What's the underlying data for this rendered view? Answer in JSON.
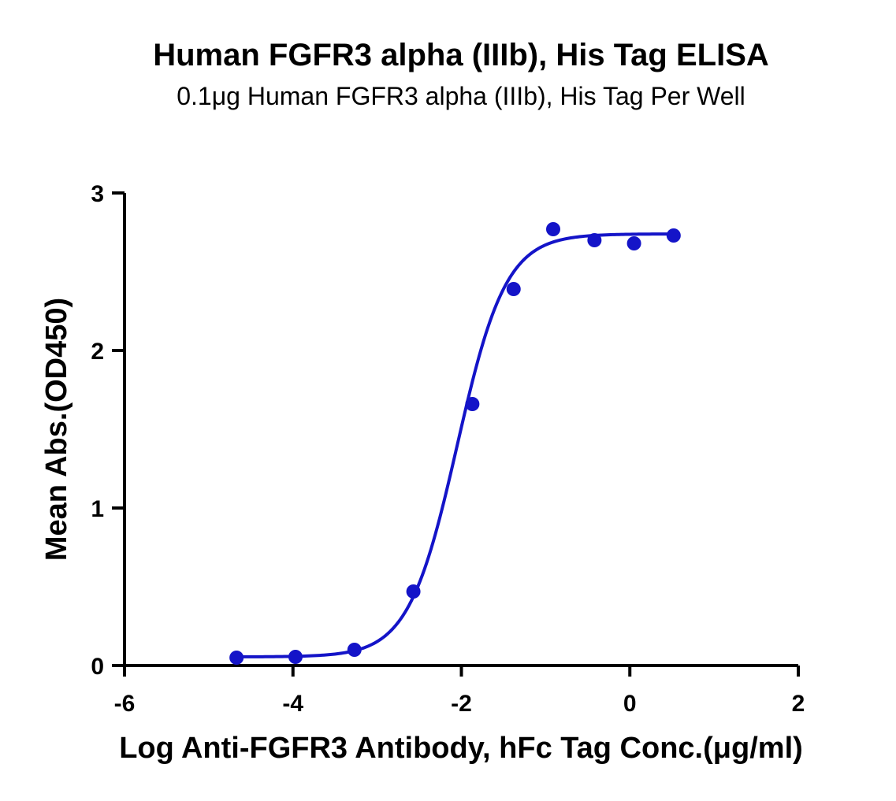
{
  "chart_data": {
    "type": "scatter",
    "title": "Human FGFR3 alpha (IIIb), His Tag ELISA",
    "subtitle": "0.1μg Human FGFR3 alpha (IIIb), His Tag Per Well",
    "xlabel": "Log Anti-FGFR3 Antibody, hFc Tag Conc.(μg/ml)",
    "ylabel": "Mean Abs.(OD450)",
    "xlim": [
      -6,
      2
    ],
    "ylim": [
      0,
      3
    ],
    "x_ticks": [
      -6,
      -4,
      -2,
      0,
      2
    ],
    "x_tick_labels": [
      "-6",
      "-4",
      "-2",
      "0",
      "2"
    ],
    "y_ticks": [
      0,
      1,
      2,
      3
    ],
    "y_tick_labels": [
      "0",
      "1",
      "2",
      "3"
    ],
    "grid": false,
    "series": [
      {
        "x": [
          -4.67,
          -3.97,
          -3.27,
          -2.57,
          -1.87,
          -1.38,
          -0.91,
          -0.42,
          0.05,
          0.52
        ],
        "y": [
          0.05,
          0.055,
          0.1,
          0.47,
          1.66,
          2.39,
          2.77,
          2.7,
          2.68,
          2.73
        ],
        "color": "#1414c8"
      }
    ],
    "fit": {
      "model": "four-parameter logistic",
      "bottom": 0.055,
      "top": 2.74,
      "log_ec50": -2.05,
      "hill_slope": 1.5,
      "color": "#1414c8"
    }
  }
}
